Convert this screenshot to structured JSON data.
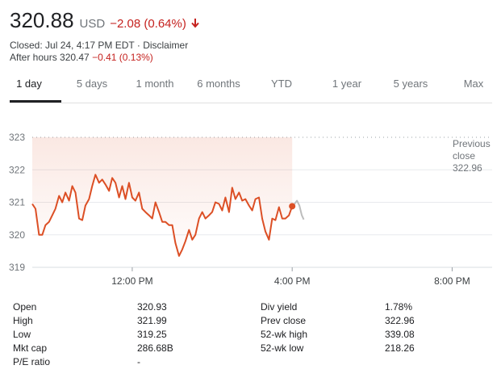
{
  "quote": {
    "price": "320.88",
    "currency": "USD",
    "change": "−2.08 (0.64%)",
    "direction_icon": "arrow-down-icon",
    "color_down": "#c5221f",
    "closed_text": "Closed: Jul 24, 4:17 PM EDT · ",
    "disclaimer": "Disclaimer",
    "after_hours_label": "After hours 320.47",
    "after_hours_change": "−0.41 (0.13%)"
  },
  "tabs": [
    "1 day",
    "5 days",
    "1 month",
    "6 months",
    "YTD",
    "1 year",
    "5 years",
    "Max"
  ],
  "active_tab": "1 day",
  "chart_data": {
    "type": "line",
    "ylim": [
      319,
      323
    ],
    "yticks": [
      "319",
      "320",
      "321",
      "322",
      "323"
    ],
    "xticks": [
      "12:00 PM",
      "4:00 PM",
      "8:00 PM"
    ],
    "xtick_hours": [
      12,
      16,
      20
    ],
    "xlim_hours": [
      9.5,
      21
    ],
    "reference_label_line1": "Previous",
    "reference_label_line2": "close",
    "reference_value": "322.96",
    "reference_level": 322.96,
    "line_color": "#dc4f25",
    "after_hours_color": "#bdbdbd",
    "series": [
      {
        "session": "regular",
        "x": [
          9.5,
          9.58,
          9.67,
          9.75,
          9.83,
          9.92,
          10.0,
          10.08,
          10.17,
          10.25,
          10.33,
          10.42,
          10.5,
          10.58,
          10.67,
          10.75,
          10.83,
          10.92,
          11.0,
          11.08,
          11.17,
          11.25,
          11.33,
          11.42,
          11.5,
          11.58,
          11.67,
          11.75,
          11.83,
          11.92,
          12.0,
          12.08,
          12.17,
          12.25,
          12.33,
          12.42,
          12.5,
          12.58,
          12.67,
          12.75,
          12.83,
          12.92,
          13.0,
          13.08,
          13.17,
          13.25,
          13.33,
          13.42,
          13.5,
          13.58,
          13.67,
          13.75,
          13.83,
          13.92,
          14.0,
          14.08,
          14.17,
          14.25,
          14.33,
          14.42,
          14.5,
          14.58,
          14.67,
          14.75,
          14.83,
          14.92,
          15.0,
          15.08,
          15.17,
          15.25,
          15.33,
          15.42,
          15.5,
          15.58,
          15.67,
          15.75,
          15.83,
          15.92,
          16.0
        ],
        "values": [
          320.95,
          320.8,
          320.0,
          320.0,
          320.3,
          320.4,
          320.6,
          320.8,
          321.2,
          321.0,
          321.3,
          321.05,
          321.5,
          321.3,
          320.5,
          320.45,
          320.9,
          321.1,
          321.5,
          321.85,
          321.6,
          321.7,
          321.55,
          321.35,
          321.75,
          321.6,
          321.15,
          321.5,
          321.1,
          321.6,
          321.15,
          321.05,
          321.3,
          320.8,
          320.7,
          320.6,
          320.5,
          321.0,
          320.7,
          320.4,
          320.4,
          320.3,
          320.3,
          319.75,
          319.35,
          319.55,
          319.8,
          320.15,
          319.85,
          320.0,
          320.5,
          320.7,
          320.5,
          320.6,
          320.7,
          321.0,
          320.95,
          320.75,
          321.15,
          320.7,
          321.45,
          321.1,
          321.3,
          321.05,
          321.1,
          320.9,
          320.75,
          321.1,
          321.15,
          320.5,
          320.1,
          319.85,
          320.5,
          320.45,
          320.85,
          320.5,
          320.5,
          320.6,
          320.88
        ]
      },
      {
        "session": "after-hours",
        "x": [
          16.0,
          16.06,
          16.12,
          16.18,
          16.24,
          16.29
        ],
        "values": [
          320.88,
          320.95,
          321.05,
          320.9,
          320.6,
          320.47
        ]
      }
    ],
    "marker_value": 320.88,
    "marker_hour": 16.0
  },
  "stats": {
    "left": [
      {
        "label": "Open",
        "value": "320.93"
      },
      {
        "label": "High",
        "value": "321.99"
      },
      {
        "label": "Low",
        "value": "319.25"
      },
      {
        "label": "Mkt cap",
        "value": "286.68B"
      },
      {
        "label": "P/E ratio",
        "value": "-"
      }
    ],
    "right": [
      {
        "label": "Div yield",
        "value": "1.78%"
      },
      {
        "label": "Prev close",
        "value": "322.96"
      },
      {
        "label": "52-wk high",
        "value": "339.08"
      },
      {
        "label": "52-wk low",
        "value": "218.26"
      }
    ]
  }
}
